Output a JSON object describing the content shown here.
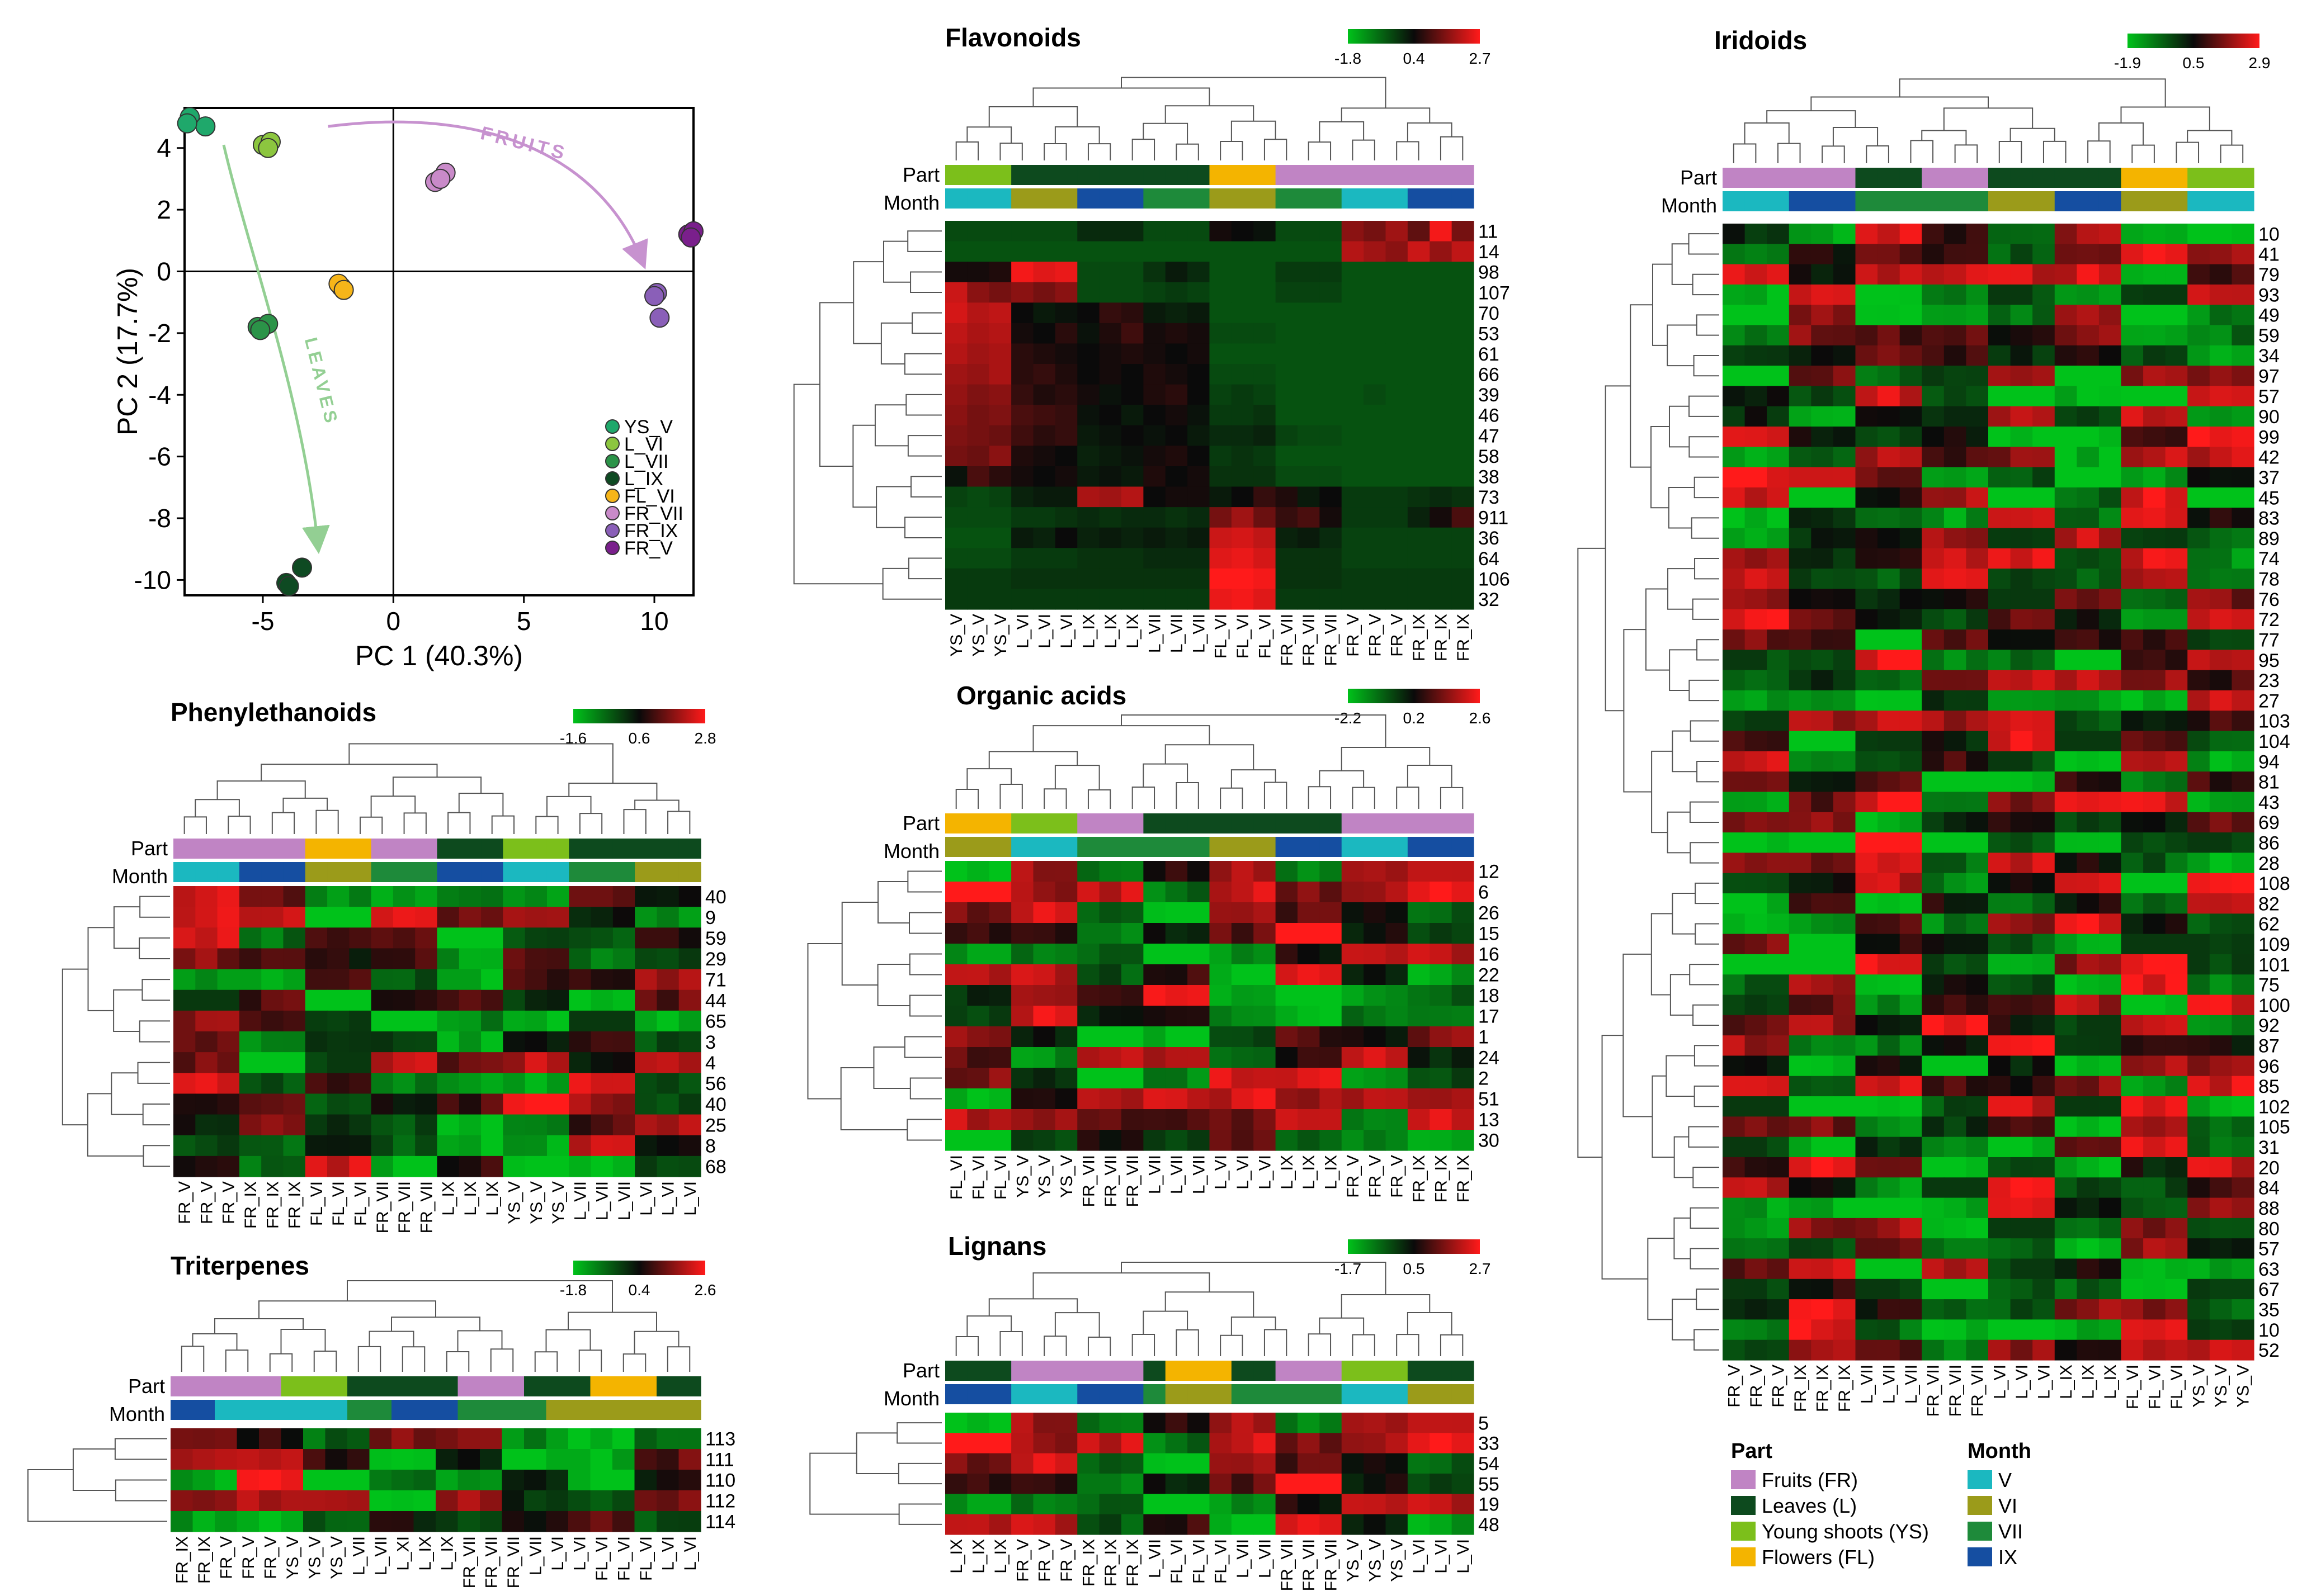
{
  "colors": {
    "FR": "#c084c4",
    "L": "#0d4a1e",
    "YS": "#7cbf1b",
    "FL": "#f4b400",
    "V": "#1bb8c0",
    "VI": "#9b9b1a",
    "VII": "#1e8a3a",
    "IX": "#154ea1",
    "green": "#00c21a",
    "black": "#0a0a0a",
    "red": "#ff1a1a"
  },
  "pca": {
    "xlabel": "PC 1 (40.3%)",
    "ylabel": "PC 2 (17.7%)",
    "xlim": [
      -8,
      11.5
    ],
    "ylim": [
      -10.5,
      5.3
    ],
    "xticks": [
      "-5",
      "0",
      "5",
      "10"
    ],
    "xtick_values": [
      -5,
      0,
      5,
      10
    ],
    "yticks": [
      "4",
      "2",
      "0",
      "-2",
      "-4",
      "-6",
      "-8",
      "-10"
    ],
    "ytick_values": [
      4,
      2,
      0,
      -2,
      -4,
      -6,
      -8,
      -10
    ],
    "fruits_label": "FRUITS",
    "leaves_label": "LEAVES",
    "legend": [
      {
        "name": "YS_V",
        "color": "#1fa86b"
      },
      {
        "name": "L_VI",
        "color": "#8cc63f"
      },
      {
        "name": "L_VII",
        "color": "#2b9348"
      },
      {
        "name": "L_IX",
        "color": "#0e4a22"
      },
      {
        "name": "FL_VI",
        "color": "#f6b519"
      },
      {
        "name": "FR_VII",
        "color": "#c98ac9"
      },
      {
        "name": "FR_IX",
        "color": "#8a5fb8"
      },
      {
        "name": "FR_V",
        "color": "#7a1f8c"
      }
    ],
    "points": [
      {
        "group": "YS_V",
        "pts": [
          [
            -7.8,
            5.0
          ],
          [
            -7.2,
            4.7
          ],
          [
            -7.9,
            4.8
          ]
        ]
      },
      {
        "group": "L_VI",
        "pts": [
          [
            -5.0,
            4.1
          ],
          [
            -4.7,
            4.2
          ],
          [
            -4.8,
            4.0
          ]
        ]
      },
      {
        "group": "L_VII",
        "pts": [
          [
            -5.2,
            -1.8
          ],
          [
            -4.8,
            -1.7
          ],
          [
            -5.1,
            -1.9
          ]
        ]
      },
      {
        "group": "L_IX",
        "pts": [
          [
            -4.1,
            -10.1
          ],
          [
            -3.5,
            -9.6
          ],
          [
            -4.0,
            -10.2
          ]
        ]
      },
      {
        "group": "FL_VI",
        "pts": [
          [
            -2.0,
            -0.5
          ],
          [
            -2.1,
            -0.4
          ],
          [
            -1.9,
            -0.6
          ]
        ]
      },
      {
        "group": "FR_VII",
        "pts": [
          [
            1.6,
            2.9
          ],
          [
            2.0,
            3.2
          ],
          [
            1.8,
            3.0
          ]
        ]
      },
      {
        "group": "FR_IX",
        "pts": [
          [
            10.1,
            -0.7
          ],
          [
            10.2,
            -1.5
          ],
          [
            10.0,
            -0.8
          ]
        ]
      },
      {
        "group": "FR_V",
        "pts": [
          [
            11.3,
            1.2
          ],
          [
            11.5,
            1.3
          ],
          [
            11.4,
            1.1
          ]
        ]
      }
    ]
  },
  "heatmaps": [
    {
      "id": "flavonoids",
      "title": "Flavonoids",
      "scale": {
        "min": "-1.8",
        "mid": "0.4",
        "max": "2.7"
      },
      "part_label": "Part",
      "month_label": "Month",
      "samples": [
        "YS_V",
        "YS_V",
        "YS_V",
        "L_VI",
        "L_VI",
        "L_VI",
        "L_IX",
        "L_IX",
        "L_IX",
        "L_VII",
        "L_VII",
        "L_VII",
        "FL_VI",
        "FL_VI",
        "FL_VI",
        "FR_VII",
        "FR_VII",
        "FR_VII",
        "FR_V",
        "FR_V",
        "FR_V",
        "FR_IX",
        "FR_IX",
        "FR_IX"
      ],
      "rows": [
        "11",
        "14",
        "98",
        "107",
        "70",
        "53",
        "61",
        "66",
        "39",
        "46",
        "47",
        "58",
        "38",
        "73",
        "911",
        "36",
        "64",
        "106",
        "32"
      ],
      "hot": [
        [
          -0.8,
          -0.8,
          -0.8,
          -0.8,
          -0.8,
          -0.8,
          -0.4,
          -0.4,
          -0.4,
          -0.8,
          -0.8,
          -0.8,
          0.1,
          0.0,
          -0.1,
          -0.8,
          -0.8,
          -0.8,
          1.2,
          1.0,
          1.4,
          0.8,
          2.2,
          1.0
        ],
        [
          -0.9,
          -0.9,
          -0.9,
          -0.9,
          -0.9,
          -0.9,
          -0.9,
          -0.9,
          -0.9,
          -0.9,
          -0.9,
          -0.9,
          -0.9,
          -0.9,
          -0.9,
          -0.9,
          -0.9,
          -0.9,
          1.6,
          1.4,
          1.2,
          1.8,
          1.3,
          1.7
        ],
        [
          0.1,
          0.1,
          0.2,
          2.2,
          2.0,
          2.1,
          -0.8,
          -0.8,
          -0.8,
          -0.5,
          -0.2,
          -0.4,
          -0.9,
          -0.9,
          -0.9,
          -0.6,
          -0.6,
          -0.6,
          -0.9,
          -0.9,
          -0.9,
          -0.9,
          -0.9,
          -0.9
        ],
        [
          1.8,
          1.2,
          1.0,
          1.2,
          1.0,
          1.2,
          -0.8,
          -0.8,
          -0.8,
          -0.7,
          -0.6,
          -0.7,
          -0.9,
          -0.9,
          -0.9,
          -0.7,
          -0.7,
          -0.7,
          -0.9,
          -0.9,
          -0.9,
          -0.9,
          -0.9,
          -0.9
        ],
        [
          1.9,
          1.6,
          1.7,
          0.0,
          -0.2,
          -0.1,
          0.0,
          0.4,
          0.3,
          -0.2,
          -0.3,
          -0.2,
          -0.9,
          -0.9,
          -0.9,
          -0.9,
          -0.9,
          -0.9,
          -0.9,
          -0.9,
          -0.9,
          -0.9,
          -0.9,
          -0.9
        ],
        [
          1.7,
          1.5,
          1.6,
          0.1,
          0.0,
          0.3,
          -0.1,
          0.2,
          0.5,
          0.1,
          0.2,
          0.1,
          -0.8,
          -0.8,
          -0.8,
          -0.9,
          -0.9,
          -0.9,
          -0.9,
          -0.9,
          -0.9,
          -0.9,
          -0.9,
          -0.9
        ],
        [
          1.6,
          1.4,
          1.5,
          0.3,
          0.2,
          0.1,
          0.0,
          0.1,
          0.2,
          0.1,
          0.0,
          0.1,
          -0.9,
          -0.9,
          -0.9,
          -0.9,
          -0.9,
          -0.9,
          -0.9,
          -0.9,
          -0.9,
          -0.9,
          -0.9,
          -0.9
        ],
        [
          1.4,
          1.3,
          1.5,
          0.3,
          0.4,
          0.2,
          0.0,
          0.1,
          0.0,
          0.2,
          0.1,
          0.0,
          -0.8,
          -0.8,
          -0.8,
          -0.9,
          -0.9,
          -0.9,
          -0.9,
          -0.9,
          -0.9,
          -0.9,
          -0.9,
          -0.9
        ],
        [
          1.3,
          1.1,
          1.2,
          0.4,
          0.2,
          0.3,
          0.1,
          -0.1,
          0.0,
          0.2,
          0.3,
          0.0,
          -0.7,
          -0.6,
          -0.7,
          -0.9,
          -0.9,
          -0.9,
          -0.9,
          -0.8,
          -0.9,
          -0.9,
          -0.9,
          -0.9
        ],
        [
          1.2,
          1.0,
          1.1,
          0.6,
          0.5,
          0.4,
          -0.1,
          0.0,
          -0.2,
          0.0,
          0.1,
          -0.1,
          -0.6,
          -0.6,
          -0.5,
          -0.9,
          -0.9,
          -0.9,
          -0.9,
          -0.9,
          -0.9,
          -0.9,
          -0.9,
          -0.9
        ],
        [
          1.1,
          1.0,
          0.9,
          0.5,
          0.3,
          0.4,
          -0.2,
          -0.1,
          0.0,
          -0.1,
          0.0,
          -0.2,
          -0.4,
          -0.4,
          -0.3,
          -0.7,
          -0.8,
          -0.8,
          -0.9,
          -0.9,
          -0.9,
          -0.9,
          -0.9,
          -0.9
        ],
        [
          1.0,
          0.9,
          1.2,
          0.2,
          0.1,
          0.0,
          -0.3,
          -0.2,
          -0.1,
          0.1,
          0.2,
          0.0,
          -0.6,
          -0.5,
          -0.6,
          -0.9,
          -0.9,
          -0.9,
          -0.9,
          -0.9,
          -0.9,
          -0.9,
          -0.9,
          -0.9
        ],
        [
          -0.1,
          0.6,
          0.3,
          0.1,
          0.0,
          0.1,
          -0.2,
          -0.1,
          -0.2,
          0.2,
          0.0,
          0.1,
          -0.5,
          -0.5,
          -0.5,
          -0.8,
          -0.8,
          -0.8,
          -0.9,
          -0.9,
          -0.9,
          -0.9,
          -0.9,
          -0.9
        ],
        [
          -0.7,
          -0.8,
          -0.7,
          -0.3,
          -0.2,
          -0.2,
          1.5,
          1.4,
          1.6,
          0.0,
          0.1,
          0.1,
          -0.2,
          0.0,
          0.4,
          0.2,
          -0.2,
          0.0,
          -0.6,
          -0.6,
          -0.6,
          -0.5,
          -0.4,
          -0.5
        ],
        [
          -0.8,
          -0.8,
          -0.8,
          -0.6,
          -0.6,
          -0.5,
          -0.4,
          -0.5,
          -0.4,
          -0.4,
          -0.5,
          -0.4,
          1.0,
          1.4,
          0.9,
          0.4,
          0.6,
          0.1,
          -0.6,
          -0.6,
          -0.6,
          -0.3,
          0.1,
          0.6
        ],
        [
          -0.9,
          -0.9,
          -0.9,
          -0.2,
          -0.3,
          0.0,
          -0.3,
          -0.2,
          -0.3,
          -0.2,
          -0.3,
          -0.2,
          1.8,
          1.9,
          1.7,
          -0.3,
          -0.2,
          -0.4,
          -0.7,
          -0.7,
          -0.7,
          -0.7,
          -0.7,
          -0.7
        ],
        [
          -0.8,
          -0.8,
          -0.8,
          -0.6,
          -0.6,
          -0.6,
          -0.5,
          -0.5,
          -0.5,
          -0.4,
          -0.4,
          -0.4,
          2.0,
          2.1,
          1.9,
          -0.5,
          -0.5,
          -0.5,
          -0.7,
          -0.7,
          -0.7,
          -0.7,
          -0.7,
          -0.7
        ],
        [
          -0.6,
          -0.6,
          -0.6,
          -0.5,
          -0.5,
          -0.5,
          -0.5,
          -0.5,
          -0.5,
          -0.5,
          -0.5,
          -0.5,
          2.3,
          2.4,
          2.2,
          -0.5,
          -0.5,
          -0.5,
          -0.6,
          -0.6,
          -0.6,
          -0.6,
          -0.6,
          -0.6
        ],
        [
          -0.6,
          -0.6,
          -0.6,
          -0.6,
          -0.6,
          -0.6,
          -0.6,
          -0.6,
          -0.6,
          -0.6,
          -0.6,
          -0.6,
          2.1,
          2.2,
          2.0,
          -0.6,
          -0.6,
          -0.6,
          -0.6,
          -0.6,
          -0.6,
          -0.6,
          -0.6,
          -0.6
        ]
      ]
    },
    {
      "id": "iridoids",
      "title": "Iridoids",
      "scale": {
        "min": "-1.9",
        "mid": "0.5",
        "max": "2.9"
      },
      "part_label": "Part",
      "month_label": "Month",
      "samples": [
        "FR_V",
        "FR_V",
        "FR_V",
        "FR_IX",
        "FR_IX",
        "FR_IX",
        "L_VII",
        "L_VII",
        "L_VII",
        "FR_VII",
        "FR_VII",
        "FR_VII",
        "L_VI",
        "L_VI",
        "L_VI",
        "L_IX",
        "L_IX",
        "L_IX",
        "FL_VI",
        "FL_VI",
        "FL_VI",
        "YS_V",
        "YS_V",
        "YS_V"
      ],
      "rows": [
        "10",
        "41",
        "79",
        "93",
        "49",
        "59",
        "34",
        "97",
        "57",
        "90",
        "99",
        "42",
        "37",
        "45",
        "83",
        "89",
        "74",
        "78",
        "76",
        "72",
        "77",
        "95",
        "23",
        "27",
        "103",
        "104",
        "94",
        "81",
        "43",
        "69",
        "86",
        "28",
        "108",
        "82",
        "62",
        "109",
        "101",
        "75",
        "100",
        "92",
        "87",
        "96",
        "85",
        "102",
        "105",
        "31",
        "20",
        "84",
        "88",
        "80",
        "57",
        "63",
        "67",
        "35",
        "10",
        "52"
      ]
    },
    {
      "id": "phenylethanoids",
      "title": "Phenylethanoids",
      "scale": {
        "min": "-1.6",
        "mid": "0.6",
        "max": "2.8"
      },
      "part_label": "Part",
      "month_label": "Month",
      "samples": [
        "FR_V",
        "FR_V",
        "FR_V",
        "FR_IX",
        "FR_IX",
        "FR_IX",
        "FL_VI",
        "FL_VI",
        "FL_VI",
        "FR_VII",
        "FR_VII",
        "FR_VII",
        "L_IX",
        "L_IX",
        "L_IX",
        "YS_V",
        "YS_V",
        "YS_V",
        "L_VII",
        "L_VII",
        "L_VII",
        "L_VI",
        "L_VI",
        "L_VI"
      ],
      "rows": [
        "40",
        "9",
        "59",
        "29",
        "71",
        "44",
        "65",
        "3",
        "4",
        "56",
        "40",
        "25",
        "8",
        "68"
      ]
    },
    {
      "id": "organic",
      "title": "Organic acids",
      "scale": {
        "min": "-2.2",
        "mid": "0.2",
        "max": "2.6"
      },
      "part_label": "Part",
      "month_label": "Month",
      "samples": [
        "FL_VI",
        "FL_VI",
        "FL_VI",
        "YS_V",
        "YS_V",
        "YS_V",
        "FR_VII",
        "FR_VII",
        "FR_VII",
        "L_VII",
        "L_VII",
        "L_VII",
        "L_VI",
        "L_VI",
        "L_VI",
        "L_IX",
        "L_IX",
        "L_IX",
        "FR_V",
        "FR_V",
        "FR_V",
        "FR_IX",
        "FR_IX",
        "FR_IX"
      ],
      "rows": [
        "12",
        "6",
        "26",
        "15",
        "16",
        "22",
        "18",
        "17",
        "1",
        "24",
        "2",
        "51",
        "13",
        "30"
      ]
    },
    {
      "id": "triterpenes",
      "title": "Triterpenes",
      "scale": {
        "min": "-1.8",
        "mid": "0.4",
        "max": "2.6"
      },
      "part_label": "Part",
      "month_label": "Month",
      "samples": [
        "FR_IX",
        "FR_IX",
        "FR_V",
        "FR_V",
        "FR_V",
        "YS_V",
        "YS_V",
        "YS_V",
        "L_VII",
        "L_VII",
        "L_XI",
        "L_IX",
        "L_IX",
        "FR_VII",
        "FR_VII",
        "FR_VII",
        "L_VII",
        "L_VI",
        "L_VI",
        "FL_VI",
        "FL_VI",
        "FL_VI",
        "L_VI",
        "L_VI"
      ],
      "rows": [
        "113",
        "111",
        "110",
        "112",
        "114"
      ]
    },
    {
      "id": "lignans",
      "title": "Lignans",
      "scale": {
        "min": "-1.7",
        "mid": "0.5",
        "max": "2.7"
      },
      "part_label": "Part",
      "month_label": "Month",
      "samples": [
        "L_IX",
        "L_IX",
        "L_IX",
        "FR_V",
        "FR_V",
        "FR_V",
        "FR_IX",
        "FR_IX",
        "FR_IX",
        "L_VII",
        "FL_VI",
        "FL_VI",
        "FL_VI",
        "L_VII",
        "L_VII",
        "FR_VII",
        "FR_VII",
        "FR_VII",
        "YS_V",
        "YS_V",
        "YS_V",
        "L_VI",
        "L_VI",
        "L_VI"
      ],
      "rows": [
        "5",
        "33",
        "54",
        "55",
        "19",
        "48"
      ]
    }
  ],
  "legend": {
    "part_title": "Part",
    "month_title": "Month",
    "parts": [
      {
        "key": "FR",
        "label": "Fruits (FR)"
      },
      {
        "key": "L",
        "label": "Leaves (L)"
      },
      {
        "key": "YS",
        "label": "Young shoots (YS)"
      },
      {
        "key": "FL",
        "label": "Flowers (FL)"
      }
    ],
    "months": [
      {
        "key": "V",
        "label": "V"
      },
      {
        "key": "VI",
        "label": "VI"
      },
      {
        "key": "VII",
        "label": "VII"
      },
      {
        "key": "IX",
        "label": "IX"
      }
    ]
  },
  "chart_data": [
    {
      "type": "scatter",
      "title": "",
      "xlabel": "PC 1 (40.3%)",
      "ylabel": "PC 2 (17.7%)",
      "xlim": [
        -8,
        11.5
      ],
      "ylim": [
        -10.5,
        5.3
      ],
      "series": [
        {
          "name": "YS_V",
          "x": [
            -7.8,
            -7.2,
            -7.9
          ],
          "y": [
            5.0,
            4.7,
            4.8
          ]
        },
        {
          "name": "L_VI",
          "x": [
            -5.0,
            -4.7,
            -4.8
          ],
          "y": [
            4.1,
            4.2,
            4.0
          ]
        },
        {
          "name": "L_VII",
          "x": [
            -5.2,
            -4.8,
            -5.1
          ],
          "y": [
            -1.8,
            -1.7,
            -1.9
          ]
        },
        {
          "name": "L_IX",
          "x": [
            -4.1,
            -3.5,
            -4.0
          ],
          "y": [
            -10.1,
            -9.6,
            -10.2
          ]
        },
        {
          "name": "FL_VI",
          "x": [
            -2.0,
            -2.1,
            -1.9
          ],
          "y": [
            -0.5,
            -0.4,
            -0.6
          ]
        },
        {
          "name": "FR_VII",
          "x": [
            1.6,
            2.0,
            1.8
          ],
          "y": [
            2.9,
            3.2,
            3.0
          ]
        },
        {
          "name": "FR_IX",
          "x": [
            10.1,
            10.2,
            10.0
          ],
          "y": [
            -0.7,
            -1.5,
            -0.8
          ]
        },
        {
          "name": "FR_V",
          "x": [
            11.3,
            11.5,
            11.4
          ],
          "y": [
            1.2,
            1.3,
            1.1
          ]
        }
      ]
    },
    {
      "type": "heatmap",
      "title": "Flavonoids",
      "scale": [
        -1.8,
        0.4,
        2.7
      ]
    },
    {
      "type": "heatmap",
      "title": "Iridoids",
      "scale": [
        -1.9,
        0.5,
        2.9
      ]
    },
    {
      "type": "heatmap",
      "title": "Phenylethanoids",
      "scale": [
        -1.6,
        0.6,
        2.8
      ]
    },
    {
      "type": "heatmap",
      "title": "Organic acids",
      "scale": [
        -2.2,
        0.2,
        2.6
      ]
    },
    {
      "type": "heatmap",
      "title": "Triterpenes",
      "scale": [
        -1.8,
        0.4,
        2.6
      ]
    },
    {
      "type": "heatmap",
      "title": "Lignans",
      "scale": [
        -1.7,
        0.5,
        2.7
      ]
    }
  ]
}
